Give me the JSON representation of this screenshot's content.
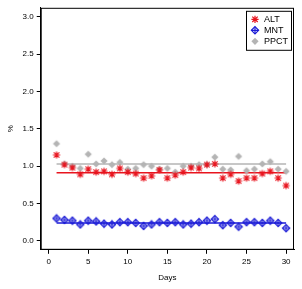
{
  "chart_data": {
    "type": "scatter",
    "x_label": "Days",
    "y_label": "%",
    "x": [
      1,
      2,
      3,
      4,
      5,
      6,
      7,
      8,
      9,
      10,
      11,
      12,
      13,
      14,
      15,
      16,
      17,
      18,
      19,
      20,
      21,
      22,
      23,
      24,
      25,
      26,
      27,
      28,
      29,
      30
    ],
    "series": [
      {
        "name": "ALT",
        "color": "#e8141e",
        "marker": "star",
        "mean": 0.91,
        "values": [
          1.15,
          1.02,
          0.98,
          0.89,
          0.96,
          0.92,
          0.93,
          0.89,
          0.97,
          0.92,
          0.9,
          0.84,
          0.87,
          0.95,
          0.84,
          0.88,
          0.92,
          0.98,
          0.97,
          1.02,
          1.03,
          0.84,
          0.89,
          0.8,
          0.84,
          0.84,
          0.9,
          0.93,
          0.84,
          0.74
        ]
      },
      {
        "name": "MNT",
        "color": "#1a1ad6",
        "marker": "diamond_plus",
        "mean": 0.24,
        "values": [
          0.3,
          0.28,
          0.27,
          0.22,
          0.27,
          0.26,
          0.23,
          0.22,
          0.25,
          0.25,
          0.24,
          0.2,
          0.22,
          0.25,
          0.24,
          0.25,
          0.22,
          0.23,
          0.25,
          0.27,
          0.29,
          0.21,
          0.24,
          0.19,
          0.25,
          0.25,
          0.24,
          0.27,
          0.24,
          0.17
        ]
      },
      {
        "name": "PPCT",
        "color": "#b4b4b4",
        "marker": "diamond",
        "mean": 1.03,
        "values": [
          1.3,
          1.03,
          1.0,
          0.97,
          1.16,
          1.03,
          1.07,
          1.02,
          1.05,
          0.96,
          0.97,
          1.02,
          1.0,
          0.96,
          0.97,
          0.92,
          1.0,
          1.0,
          1.02,
          1.02,
          1.12,
          0.96,
          0.95,
          1.13,
          0.94,
          0.96,
          1.03,
          1.06,
          0.96,
          0.93
        ]
      }
    ],
    "xlim": [
      -1,
      31
    ],
    "xticks": [
      0,
      5,
      10,
      15,
      20,
      25,
      30
    ],
    "ylim": [
      -0.12,
      3.12
    ],
    "yticks": [
      {
        "value": 0,
        "label": "0.0"
      },
      0.5,
      {
        "value": 1,
        "label": "1.0"
      },
      1.5,
      {
        "value": 2,
        "label": "2.0"
      },
      2.5,
      {
        "value": 3,
        "label": "3.0"
      }
    ],
    "grid": false,
    "legend": "top right"
  }
}
